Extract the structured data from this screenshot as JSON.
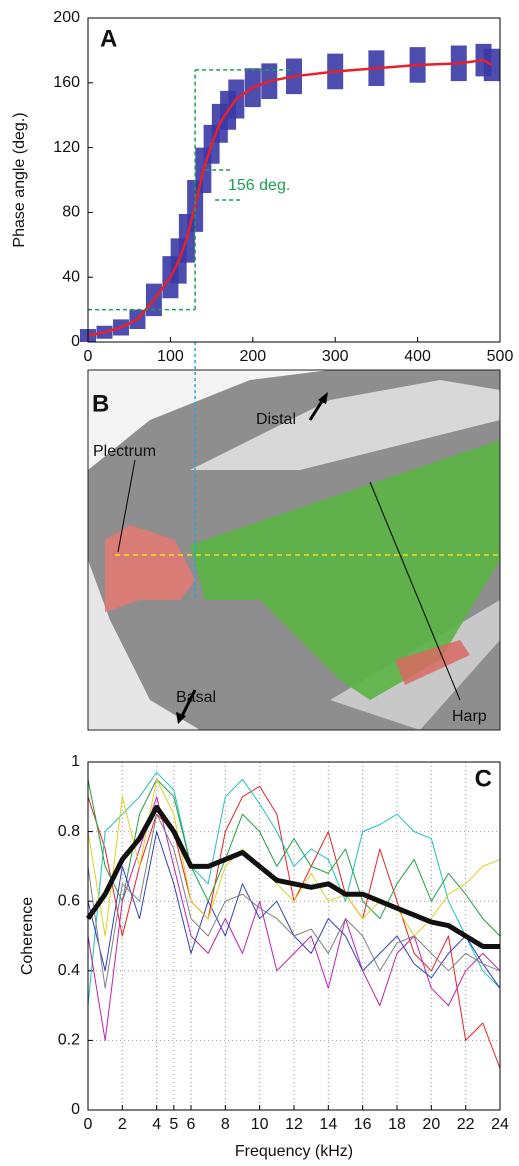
{
  "chart_data": [
    {
      "type": "line",
      "panel_label": "A",
      "ylabel": "Phase angle (deg.)",
      "annotation": "156 deg.",
      "x": [
        0,
        20,
        40,
        60,
        80,
        100,
        110,
        120,
        130,
        140,
        150,
        160,
        170,
        180,
        200,
        220,
        250,
        300,
        350,
        400,
        450,
        480,
        490
      ],
      "series": [
        {
          "color": "#e8202a",
          "band_color": "#3a3aa8",
          "width": 2.5,
          "values": [
            4,
            6,
            9,
            14,
            26,
            40,
            50,
            64,
            84,
            106,
            122,
            135,
            143,
            150,
            157,
            161,
            164,
            167,
            169,
            171,
            172,
            174,
            171
          ],
          "errors": [
            4,
            4,
            5,
            6,
            10,
            13,
            14,
            15,
            16,
            14,
            12,
            12,
            12,
            12,
            12,
            11,
            11,
            11,
            11,
            11,
            11,
            10,
            10
          ]
        }
      ],
      "bracket": {
        "x": 130,
        "y": [
          20,
          168
        ],
        "color": "#1aa050"
      },
      "xlim": [
        0,
        500
      ],
      "xticks": [
        0,
        100,
        200,
        300,
        400,
        500
      ],
      "ylim": [
        0,
        200
      ],
      "yticks": [
        0,
        40,
        80,
        120,
        160,
        200
      ],
      "grid": false
    },
    {
      "type": "line",
      "panel_label": "C",
      "xlabel": "Frequency (kHz)",
      "ylabel": "Coherence",
      "x": [
        0,
        1,
        2,
        3,
        4,
        5,
        6,
        7,
        8,
        9,
        10,
        11,
        12,
        13,
        14,
        15,
        16,
        17,
        18,
        19,
        20,
        21,
        22,
        23,
        24
      ],
      "series": [
        {
          "color": "#e82020",
          "width": 1,
          "values": [
            0.9,
            0.75,
            0.5,
            0.7,
            0.85,
            0.8,
            0.6,
            0.55,
            0.8,
            0.9,
            0.93,
            0.85,
            0.6,
            0.7,
            0.8,
            0.62,
            0.55,
            0.75,
            0.6,
            0.45,
            0.4,
            0.5,
            0.2,
            0.25,
            0.12
          ]
        },
        {
          "color": "#20c0c0",
          "width": 1,
          "values": [
            0.3,
            0.8,
            0.85,
            0.9,
            0.97,
            0.92,
            0.7,
            0.65,
            0.9,
            0.95,
            0.88,
            0.8,
            0.7,
            0.75,
            0.72,
            0.6,
            0.8,
            0.82,
            0.85,
            0.8,
            0.78,
            0.6,
            0.5,
            0.4,
            0.35
          ]
        },
        {
          "color": "#20a040",
          "width": 1,
          "values": [
            0.95,
            0.7,
            0.6,
            0.85,
            0.95,
            0.9,
            0.7,
            0.6,
            0.72,
            0.85,
            0.8,
            0.7,
            0.78,
            0.7,
            0.68,
            0.75,
            0.6,
            0.55,
            0.65,
            0.72,
            0.6,
            0.68,
            0.62,
            0.55,
            0.5
          ]
        },
        {
          "color": "#c020b0",
          "width": 1,
          "values": [
            0.5,
            0.2,
            0.6,
            0.75,
            0.9,
            0.7,
            0.5,
            0.45,
            0.55,
            0.45,
            0.6,
            0.4,
            0.45,
            0.5,
            0.35,
            0.55,
            0.4,
            0.3,
            0.45,
            0.5,
            0.35,
            0.3,
            0.4,
            0.45,
            0.4
          ]
        },
        {
          "color": "#3040c0",
          "width": 1,
          "values": [
            0.6,
            0.4,
            0.7,
            0.55,
            0.8,
            0.65,
            0.45,
            0.6,
            0.5,
            0.65,
            0.55,
            0.6,
            0.5,
            0.45,
            0.55,
            0.5,
            0.4,
            0.45,
            0.5,
            0.42,
            0.38,
            0.45,
            0.5,
            0.42,
            0.35
          ]
        },
        {
          "color": "#e0d020",
          "width": 1,
          "values": [
            0.8,
            0.5,
            0.9,
            0.7,
            0.95,
            0.85,
            0.6,
            0.55,
            0.7,
            0.75,
            0.7,
            0.65,
            0.6,
            0.68,
            0.6,
            0.62,
            0.55,
            0.6,
            0.58,
            0.5,
            0.55,
            0.62,
            0.65,
            0.7,
            0.72
          ]
        },
        {
          "color": "#808080",
          "width": 1,
          "values": [
            0.7,
            0.35,
            0.65,
            0.6,
            0.85,
            0.75,
            0.55,
            0.5,
            0.6,
            0.62,
            0.58,
            0.55,
            0.5,
            0.52,
            0.45,
            0.55,
            0.5,
            0.4,
            0.48,
            0.5,
            0.45,
            0.4,
            0.45,
            0.42,
            0.4
          ]
        },
        {
          "color": "#111111",
          "width": 5,
          "values": [
            0.55,
            0.62,
            0.72,
            0.78,
            0.87,
            0.8,
            0.7,
            0.7,
            0.72,
            0.74,
            0.7,
            0.66,
            0.65,
            0.64,
            0.65,
            0.62,
            0.62,
            0.6,
            0.58,
            0.56,
            0.54,
            0.53,
            0.5,
            0.47,
            0.47
          ]
        }
      ],
      "xlim": [
        0,
        24
      ],
      "xticks": [
        0,
        2,
        4,
        5,
        6,
        8,
        10,
        12,
        14,
        16,
        18,
        20,
        22,
        24
      ],
      "ylim": [
        0,
        1
      ],
      "yticks": [
        0,
        0.2,
        0.4,
        0.6,
        0.8,
        1
      ],
      "grid": true
    }
  ],
  "image_panel": {
    "panel_label": "B",
    "labels": [
      "Plectrum",
      "Distal",
      "Basal",
      "Harp"
    ]
  }
}
